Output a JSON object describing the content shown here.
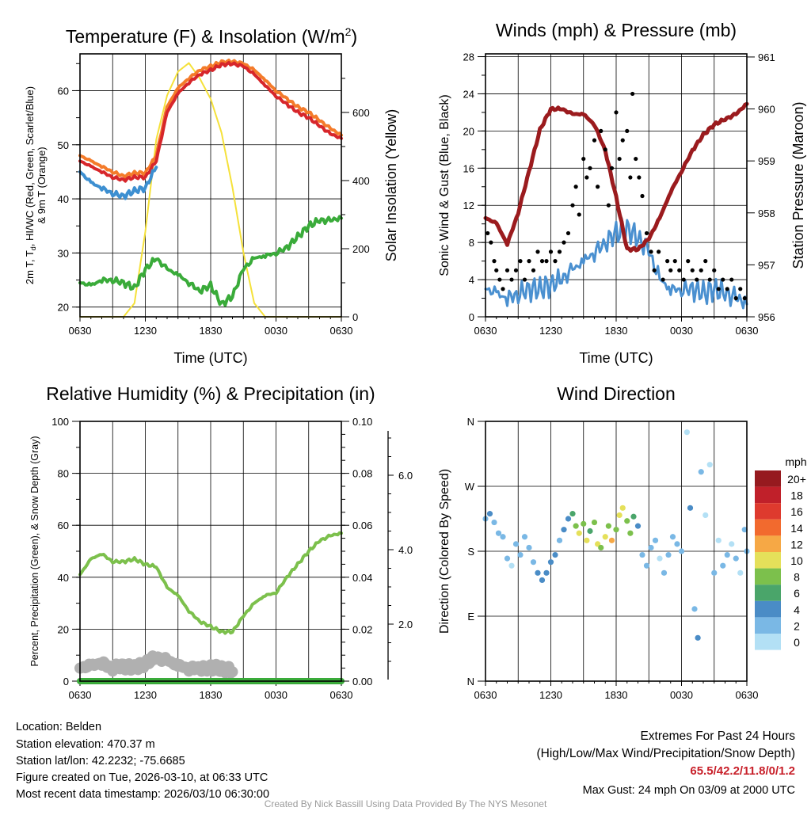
{
  "footer": {
    "location": "Location: Belden",
    "elevation": "Station elevation: 470.37 m",
    "latlon": "Station lat/lon: 42.2232; -75.6685",
    "created": "Figure created on Tue, 2026-03-10, at 06:33 UTC",
    "recent": "Most recent data timestamp: 2026/03/10 06:30:00",
    "extremes_title": "Extremes For Past 24 Hours",
    "extremes_sub": "(High/Low/Max Wind/Precipitation/Snow Depth)",
    "extremes_values": "65.5/42.2/11.8/0/1.2",
    "max_gust": "Max Gust: 24 mph On 03/09 at 2000 UTC",
    "credit": "Created By Nick Bassill Using Data Provided By The NYS Mesonet"
  },
  "chart_data": [
    {
      "id": "temperature",
      "type": "line",
      "title_main": "Temperature (F) & Insolation (W/m",
      "title_sup": "2",
      "title_end": ")",
      "ylabel_line1_a": "2m T, T",
      "ylabel_line1_sub": "d",
      "ylabel_line1_b": ", HI/WC (Red, Green, Scarlet/Blue)",
      "ylabel_line2": "& 9m T (Orange)",
      "y2label": "Solar Insolation (Yellow)",
      "xlabel": "Time (UTC)",
      "x_tick_labels": [
        "0630",
        "1230",
        "1830",
        "0030",
        "0630"
      ],
      "x_unit": "hours since 0630 UTC",
      "ylim": [
        18.2,
        66.8
      ],
      "y_ticks": [
        20,
        30,
        40,
        50,
        60
      ],
      "y2lim": [
        0,
        772
      ],
      "y2_ticks": [
        0,
        200,
        400,
        600
      ],
      "grid": true,
      "x": [
        0,
        1,
        2,
        3,
        4,
        5,
        6,
        7,
        8,
        9,
        10,
        11,
        12,
        13,
        14,
        15,
        16,
        17,
        18,
        19,
        20,
        21,
        22,
        23,
        24
      ],
      "series": [
        {
          "name": "2m T",
          "color": "#d7262b",
          "values": [
            47,
            46,
            45,
            44,
            43.5,
            44,
            44,
            47,
            56,
            59.5,
            61.5,
            63,
            63.8,
            64.8,
            65,
            64.5,
            63,
            61,
            59,
            57.5,
            56,
            55,
            53.5,
            52,
            51.2
          ]
        },
        {
          "name": "9m T",
          "color": "#f47b2a",
          "values": [
            48,
            47,
            46,
            45,
            44.2,
            44.8,
            44.8,
            48,
            57,
            60.5,
            62.3,
            63.8,
            64.5,
            65.3,
            65.4,
            65,
            63.8,
            62,
            60,
            58.5,
            57,
            56,
            54.5,
            53,
            51.8
          ]
        },
        {
          "name": "Td",
          "color": "#3aab3a",
          "values": [
            24.5,
            24,
            25,
            25,
            24.5,
            23.5,
            27,
            29,
            27,
            26,
            24.5,
            23,
            24,
            20.5,
            22,
            27,
            29,
            29.5,
            30,
            31,
            33,
            35,
            36,
            36,
            36.5
          ]
        },
        {
          "name": "HI/WC",
          "color": "#3d8fd1",
          "values": [
            45,
            43,
            42,
            41,
            40.5,
            41.5,
            42,
            46,
            null,
            null,
            null,
            null,
            null,
            null,
            null,
            null,
            null,
            null,
            null,
            null,
            null,
            null,
            null,
            null,
            null
          ]
        },
        {
          "name": "Solar Insolation",
          "color": "#f5e13a",
          "axis": "right",
          "values": [
            0,
            0,
            0,
            0,
            0,
            40,
            250,
            520,
            650,
            720,
            745,
            700,
            640,
            540,
            380,
            190,
            40,
            0,
            0,
            0,
            0,
            0,
            0,
            0,
            0
          ]
        }
      ]
    },
    {
      "id": "winds",
      "type": "line",
      "title": "Winds (mph) & Pressure (mb)",
      "ylabel": "Sonic Wind & Gust (Blue, Black)",
      "y2label": "Station Pressure (Maroon)",
      "xlabel": "Time (UTC)",
      "x_tick_labels": [
        "0630",
        "1230",
        "1830",
        "0030",
        "0630"
      ],
      "ylim": [
        0,
        28.3
      ],
      "y_ticks": [
        0,
        4,
        8,
        12,
        16,
        20,
        24,
        28
      ],
      "y2lim": [
        956,
        961.06
      ],
      "y2_ticks": [
        956,
        957,
        958,
        959,
        960,
        961
      ],
      "grid": true,
      "x": [
        0,
        1,
        2,
        3,
        4,
        5,
        6,
        7,
        8,
        9,
        10,
        11,
        12,
        13,
        14,
        15,
        16,
        17,
        18,
        19,
        20,
        21,
        22,
        23,
        24
      ],
      "series": [
        {
          "name": "Sonic Wind",
          "color": "#4a90d0",
          "values": [
            3,
            2.5,
            2,
            2.5,
            3,
            3,
            3.5,
            4,
            5,
            6,
            7,
            8,
            9,
            9.5,
            8.5,
            7,
            4,
            3,
            3,
            3,
            2.5,
            3,
            2.5,
            2,
            1.5
          ]
        },
        {
          "name": "Station Pressure",
          "color": "#9b1b1e",
          "axis": "right",
          "values": [
            957.9,
            957.8,
            957.4,
            958,
            958.8,
            959.6,
            960,
            960,
            959.9,
            959.9,
            959.7,
            959.2,
            958.3,
            957.3,
            957.3,
            957.5,
            957.9,
            958.4,
            958.8,
            959.2,
            959.5,
            959.7,
            959.8,
            959.9,
            960.1
          ]
        },
        {
          "name": "Gust",
          "color": "#000000",
          "type": "scatter",
          "points": [
            [
              0.2,
              9
            ],
            [
              0.5,
              8
            ],
            [
              0.8,
              6
            ],
            [
              1,
              5
            ],
            [
              1.3,
              4
            ],
            [
              1.6,
              3
            ],
            [
              2,
              5
            ],
            [
              2.4,
              4
            ],
            [
              2.8,
              5
            ],
            [
              3.2,
              6
            ],
            [
              3.6,
              4
            ],
            [
              4,
              6
            ],
            [
              4.4,
              5
            ],
            [
              4.8,
              7
            ],
            [
              5.2,
              6
            ],
            [
              5.6,
              6
            ],
            [
              6,
              7
            ],
            [
              6.4,
              6
            ],
            [
              6.8,
              7
            ],
            [
              7.2,
              8
            ],
            [
              7.6,
              9
            ],
            [
              8,
              12
            ],
            [
              8.3,
              14
            ],
            [
              8.6,
              11
            ],
            [
              9,
              17
            ],
            [
              9.3,
              15
            ],
            [
              9.6,
              16
            ],
            [
              10,
              19
            ],
            [
              10.3,
              14
            ],
            [
              10.6,
              20
            ],
            [
              11,
              18
            ],
            [
              11.3,
              12
            ],
            [
              11.6,
              16
            ],
            [
              12,
              22
            ],
            [
              12.3,
              17
            ],
            [
              12.6,
              19
            ],
            [
              13,
              20
            ],
            [
              13.3,
              15
            ],
            [
              13.5,
              24
            ],
            [
              13.8,
              17
            ],
            [
              14.1,
              15
            ],
            [
              14.4,
              13
            ],
            [
              14.8,
              9
            ],
            [
              15.2,
              7
            ],
            [
              15.5,
              5
            ],
            [
              15.9,
              7
            ],
            [
              16.3,
              4
            ],
            [
              16.7,
              6
            ],
            [
              17,
              5
            ],
            [
              17.4,
              6
            ],
            [
              17.8,
              5
            ],
            [
              18.2,
              4
            ],
            [
              18.6,
              6
            ],
            [
              19,
              5
            ],
            [
              19.4,
              4
            ],
            [
              19.8,
              5
            ],
            [
              20.2,
              6
            ],
            [
              20.6,
              4
            ],
            [
              21,
              5
            ],
            [
              21.4,
              3
            ],
            [
              21.8,
              4
            ],
            [
              22.2,
              3
            ],
            [
              22.6,
              4
            ],
            [
              23,
              2
            ],
            [
              23.4,
              3
            ],
            [
              23.8,
              2
            ]
          ]
        }
      ]
    },
    {
      "id": "humidity",
      "type": "line",
      "title": "Relative Humidity (%) & Precipitation (in)",
      "ylabel": "Percent, Precipitation (Green), & Snow Depth (Gray)",
      "x_tick_labels": [
        "0630",
        "1230",
        "1830",
        "0030",
        "0630"
      ],
      "ylim": [
        0,
        100
      ],
      "y_ticks": [
        0,
        20,
        40,
        60,
        80,
        100
      ],
      "y2lim": [
        0,
        0.1
      ],
      "y2_ticks": [
        "0.00",
        "0.02",
        "0.04",
        "0.06",
        "0.08",
        "0.10"
      ],
      "y3_ticks": [
        "2.0",
        "4.0",
        "6.0"
      ],
      "grid": true,
      "x": [
        0,
        1,
        2,
        3,
        4,
        5,
        6,
        7,
        8,
        9,
        10,
        11,
        12,
        13,
        14,
        15,
        16,
        17,
        18,
        19,
        20,
        21,
        22,
        23,
        24
      ],
      "series": [
        {
          "name": "Relative Humidity",
          "color": "#7cc04c",
          "values": [
            41,
            47,
            49,
            46,
            46,
            47,
            45,
            44,
            36,
            33,
            27,
            23,
            21,
            19,
            19,
            25,
            30,
            33,
            34,
            40,
            45,
            50,
            54,
            56,
            57
          ]
        },
        {
          "name": "Precipitation",
          "color": "#3aab3a",
          "axis": "right",
          "values": [
            0,
            0,
            0,
            0,
            0,
            0,
            0,
            0,
            0,
            0,
            0,
            0,
            0,
            0,
            0,
            0,
            0,
            0,
            0,
            0,
            0,
            0,
            0,
            0,
            0
          ]
        },
        {
          "name": "Snow Depth",
          "color": "#b0b0b0",
          "values": [
            5,
            6,
            7,
            5,
            6,
            5,
            7,
            9,
            8,
            6,
            5,
            5,
            5,
            5,
            4,
            null,
            null,
            null,
            null,
            null,
            null,
            null,
            null,
            null,
            null
          ]
        }
      ]
    },
    {
      "id": "wind_direction",
      "type": "scatter",
      "title": "Wind Direction",
      "ylabel": "Direction (Colored By Speed)",
      "x_tick_labels": [
        "0630",
        "1230",
        "1830",
        "0030",
        "0630"
      ],
      "ylim": [
        0,
        360
      ],
      "y_tick_labels": [
        "N",
        "E",
        "S",
        "W",
        "N"
      ],
      "grid": true,
      "legend_title": "mph",
      "legend_labels": [
        "20+",
        "18",
        "16",
        "14",
        "12",
        "10",
        "8",
        "6",
        "4",
        "2",
        "0"
      ],
      "legend_colors": [
        "#961a1f",
        "#c0202a",
        "#de3a2e",
        "#f26a2e",
        "#f6a845",
        "#e5e05a",
        "#7cc04c",
        "#4aa56a",
        "#4a8cc6",
        "#7ab8e5",
        "#b3e0f5"
      ],
      "points": [
        [
          0,
          225,
          3
        ],
        [
          0.4,
          232,
          4
        ],
        [
          0.8,
          220,
          3
        ],
        [
          1.2,
          205,
          2
        ],
        [
          1.6,
          200,
          3
        ],
        [
          2,
          170,
          2
        ],
        [
          2.4,
          160,
          1
        ],
        [
          2.8,
          190,
          2
        ],
        [
          3.2,
          175,
          3
        ],
        [
          3.6,
          200,
          2
        ],
        [
          4,
          185,
          3
        ],
        [
          4.4,
          165,
          3
        ],
        [
          4.8,
          150,
          4
        ],
        [
          5.2,
          140,
          4
        ],
        [
          5.6,
          150,
          4
        ],
        [
          6,
          165,
          4
        ],
        [
          6.4,
          175,
          4
        ],
        [
          6.8,
          195,
          3
        ],
        [
          7.2,
          210,
          4
        ],
        [
          7.6,
          225,
          5
        ],
        [
          8,
          232,
          7
        ],
        [
          8.3,
          215,
          9
        ],
        [
          8.6,
          205,
          11
        ],
        [
          9,
          218,
          8
        ],
        [
          9.3,
          195,
          10
        ],
        [
          9.6,
          208,
          7
        ],
        [
          10,
          220,
          8
        ],
        [
          10.3,
          190,
          11
        ],
        [
          10.6,
          185,
          9
        ],
        [
          11,
          200,
          10
        ],
        [
          11.3,
          215,
          9
        ],
        [
          11.6,
          195,
          12
        ],
        [
          12,
          210,
          9
        ],
        [
          12.3,
          230,
          11
        ],
        [
          12.6,
          240,
          10
        ],
        [
          13,
          222,
          8
        ],
        [
          13.3,
          205,
          8
        ],
        [
          13.6,
          228,
          6
        ],
        [
          14,
          215,
          5
        ],
        [
          14.4,
          175,
          2
        ],
        [
          14.8,
          160,
          2
        ],
        [
          15.2,
          185,
          3
        ],
        [
          15.6,
          195,
          2
        ],
        [
          16,
          170,
          1
        ],
        [
          16.4,
          150,
          2
        ],
        [
          16.8,
          175,
          3
        ],
        [
          17.2,
          200,
          3
        ],
        [
          17.6,
          190,
          2
        ],
        [
          18,
          180,
          2
        ],
        [
          18.5,
          345,
          1
        ],
        [
          18.8,
          240,
          4
        ],
        [
          19.2,
          100,
          2
        ],
        [
          19.5,
          60,
          4
        ],
        [
          19.8,
          290,
          2
        ],
        [
          20.2,
          230,
          1
        ],
        [
          20.6,
          300,
          1
        ],
        [
          21,
          150,
          2
        ],
        [
          21.4,
          195,
          1
        ],
        [
          21.8,
          160,
          2
        ],
        [
          22.2,
          175,
          2
        ],
        [
          22.6,
          190,
          1
        ],
        [
          23,
          170,
          2
        ],
        [
          23.4,
          150,
          1
        ],
        [
          23.8,
          210,
          2
        ],
        [
          24,
          180,
          2
        ]
      ]
    }
  ]
}
